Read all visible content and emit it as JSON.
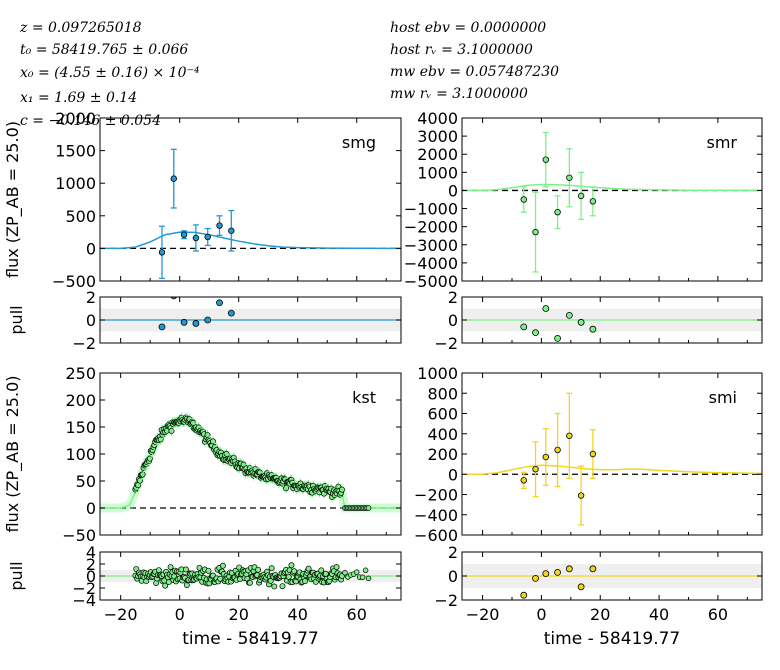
{
  "header": {
    "left": [
      "z = 0.097265018",
      "t₀ = 58419.765 ± 0.066",
      "x₀ = (4.55 ± 0.16) × 10⁻⁴",
      "x₁ = 1.69 ± 0.14",
      "c = −0.146 ± 0.054"
    ],
    "right": [
      "host ebv = 0.0000000",
      "host rᵥ = 3.1000000",
      "mw ebv = 0.057487230",
      "mw rᵥ = 3.1000000"
    ]
  },
  "chart_data": {
    "type": "scatter",
    "xlabel": "time - 58419.77",
    "xlim": [
      -27,
      75
    ],
    "xticks": [
      -20,
      0,
      20,
      40,
      60
    ],
    "ylabel_flux": "flux (ZP_AB = 25.0)",
    "ylabel_pull": "pull",
    "panels": [
      {
        "band": "smg",
        "color": "#1f9ad6",
        "flux": {
          "ylim": [
            -500,
            2000
          ],
          "yticks": [
            -500,
            0,
            500,
            1000,
            1500,
            2000
          ],
          "points": [
            {
              "x": -6,
              "y": -60,
              "err": 400
            },
            {
              "x": -2,
              "y": 1070,
              "err": 450
            },
            {
              "x": 1.5,
              "y": 210,
              "err": 60
            },
            {
              "x": 5.5,
              "y": 160,
              "err": 200
            },
            {
              "x": 9.5,
              "y": 175,
              "err": 130
            },
            {
              "x": 13.5,
              "y": 350,
              "err": 150
            },
            {
              "x": 17.5,
              "y": 270,
              "err": 310
            }
          ],
          "model": [
            [
              -27,
              0
            ],
            [
              -20,
              0
            ],
            [
              -15,
              20
            ],
            [
              -10,
              100
            ],
            [
              -5,
              210
            ],
            [
              0,
              250
            ],
            [
              5,
              245
            ],
            [
              10,
              210
            ],
            [
              15,
              160
            ],
            [
              20,
              110
            ],
            [
              25,
              70
            ],
            [
              30,
              40
            ],
            [
              35,
              20
            ],
            [
              40,
              12
            ],
            [
              50,
              5
            ],
            [
              60,
              2
            ],
            [
              75,
              0
            ]
          ]
        },
        "pull": {
          "ylim": [
            -2,
            2
          ],
          "yticks": [
            -2,
            0,
            2
          ],
          "points": [
            {
              "x": -6,
              "y": -0.6
            },
            {
              "x": -2,
              "y": 2.1
            },
            {
              "x": 1.5,
              "y": -0.2
            },
            {
              "x": 5.5,
              "y": -0.3
            },
            {
              "x": 9.5,
              "y": 0.0
            },
            {
              "x": 13.5,
              "y": 1.5
            },
            {
              "x": 17.5,
              "y": 0.6
            }
          ]
        }
      },
      {
        "band": "smr",
        "color": "#7ef08a",
        "flux": {
          "ylim": [
            -5000,
            4000
          ],
          "yticks": [
            -5000,
            -4000,
            -3000,
            -2000,
            -1000,
            0,
            1000,
            2000,
            3000,
            4000
          ],
          "points": [
            {
              "x": -6,
              "y": -500,
              "err": 700
            },
            {
              "x": -2,
              "y": -2300,
              "err": 2200
            },
            {
              "x": 1.5,
              "y": 1700,
              "err": 1500
            },
            {
              "x": 5.5,
              "y": -1200,
              "err": 900
            },
            {
              "x": 9.5,
              "y": 700,
              "err": 1600
            },
            {
              "x": 13.5,
              "y": -300,
              "err": 1300
            },
            {
              "x": 17.5,
              "y": -600,
              "err": 800
            }
          ],
          "model": [
            [
              -27,
              0
            ],
            [
              -20,
              0
            ],
            [
              -15,
              40
            ],
            [
              -10,
              150
            ],
            [
              -5,
              280
            ],
            [
              0,
              330
            ],
            [
              5,
              320
            ],
            [
              10,
              280
            ],
            [
              15,
              210
            ],
            [
              20,
              150
            ],
            [
              25,
              100
            ],
            [
              30,
              70
            ],
            [
              40,
              30
            ],
            [
              50,
              15
            ],
            [
              60,
              6
            ],
            [
              75,
              0
            ]
          ]
        },
        "pull": {
          "ylim": [
            -2,
            2
          ],
          "yticks": [
            -2,
            0,
            2
          ],
          "points": [
            {
              "x": -6,
              "y": -0.6
            },
            {
              "x": -2,
              "y": -1.1
            },
            {
              "x": 1.5,
              "y": 1.0
            },
            {
              "x": 5.5,
              "y": -1.6
            },
            {
              "x": 9.5,
              "y": 0.4
            },
            {
              "x": 13.5,
              "y": -0.2
            },
            {
              "x": 17.5,
              "y": -0.8
            }
          ]
        }
      },
      {
        "band": "kst",
        "color": "#7ef08a",
        "flux": {
          "ylim": [
            -50,
            250
          ],
          "yticks": [
            -50,
            0,
            50,
            100,
            150,
            200,
            250
          ],
          "dense_count": 230,
          "dense_range": [
            -15,
            55
          ],
          "tail": [
            56,
            64
          ],
          "model": [
            [
              -27,
              0
            ],
            [
              -20,
              0
            ],
            [
              -17,
              5
            ],
            [
              -15,
              30
            ],
            [
              -12,
              75
            ],
            [
              -8,
              122
            ],
            [
              -4,
              150
            ],
            [
              0,
              162
            ],
            [
              3,
              160
            ],
            [
              6,
              148
            ],
            [
              10,
              122
            ],
            [
              14,
              100
            ],
            [
              18,
              85
            ],
            [
              24,
              68
            ],
            [
              30,
              55
            ],
            [
              40,
              42
            ],
            [
              50,
              33
            ],
            [
              55,
              28
            ],
            [
              56,
              0
            ],
            [
              75,
              0
            ]
          ]
        },
        "pull": {
          "ylim": [
            -4,
            4
          ],
          "yticks": [
            -4,
            -2,
            0,
            2,
            4
          ]
        }
      },
      {
        "band": "smi",
        "color": "#f2d61c",
        "flux": {
          "ylim": [
            -600,
            1000
          ],
          "yticks": [
            -600,
            -400,
            -200,
            0,
            200,
            400,
            600,
            800,
            1000
          ],
          "points": [
            {
              "x": -6,
              "y": -60,
              "err": 80
            },
            {
              "x": -2,
              "y": 50,
              "err": 270
            },
            {
              "x": 1.5,
              "y": 170,
              "err": 280
            },
            {
              "x": 5.5,
              "y": 240,
              "err": 360
            },
            {
              "x": 9.5,
              "y": 380,
              "err": 420
            },
            {
              "x": 13.5,
              "y": -210,
              "err": 290
            },
            {
              "x": 17.5,
              "y": 200,
              "err": 240
            }
          ],
          "model": [
            [
              -27,
              0
            ],
            [
              -20,
              0
            ],
            [
              -15,
              15
            ],
            [
              -10,
              45
            ],
            [
              -5,
              75
            ],
            [
              0,
              88
            ],
            [
              5,
              82
            ],
            [
              10,
              70
            ],
            [
              15,
              55
            ],
            [
              20,
              45
            ],
            [
              25,
              45
            ],
            [
              30,
              52
            ],
            [
              35,
              48
            ],
            [
              40,
              38
            ],
            [
              50,
              25
            ],
            [
              60,
              15
            ],
            [
              75,
              8
            ]
          ]
        },
        "pull": {
          "ylim": [
            -2,
            2
          ],
          "yticks": [
            -2,
            0,
            2
          ],
          "points": [
            {
              "x": -6,
              "y": -1.6
            },
            {
              "x": -2,
              "y": -0.2
            },
            {
              "x": 1.5,
              "y": 0.2
            },
            {
              "x": 5.5,
              "y": 0.3
            },
            {
              "x": 9.5,
              "y": 0.6
            },
            {
              "x": 13.5,
              "y": -0.9
            },
            {
              "x": 17.5,
              "y": 0.6
            }
          ]
        }
      }
    ]
  }
}
